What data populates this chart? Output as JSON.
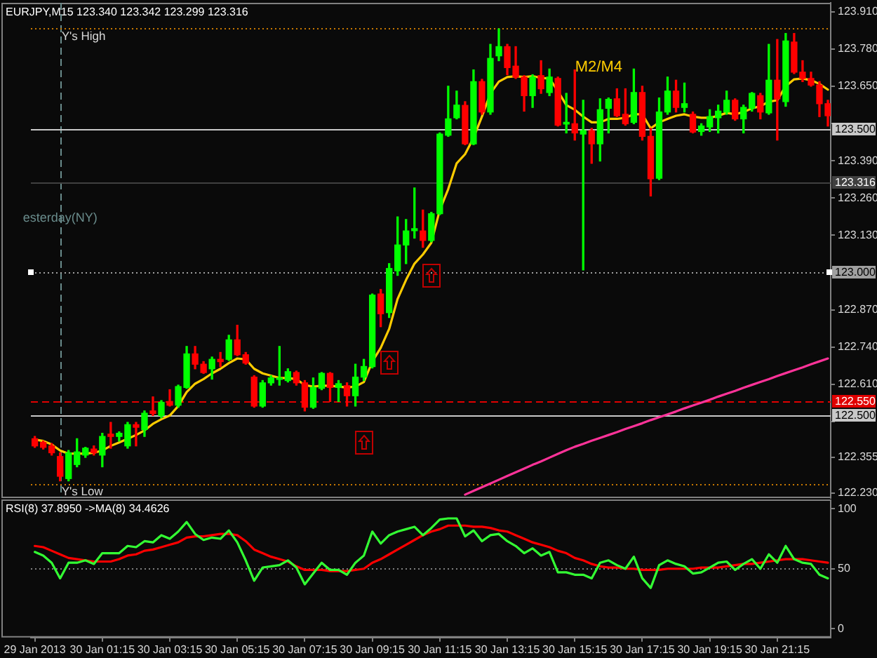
{
  "chart_data": [
    {
      "type": "candlestick",
      "title": "EURJPY,M15 123.340 123.342 123.299 123.316",
      "tick_labels": "y",
      "x": [
        "2013-01-29T23:15",
        "2013-01-29T23:30",
        "2013-01-29T23:45",
        "2013-01-30T00:00",
        "2013-01-30T00:15",
        "2013-01-30T00:30",
        "2013-01-30T00:45",
        "2013-01-30T01:00",
        "2013-01-30T01:15",
        "2013-01-30T01:30",
        "2013-01-30T01:45",
        "2013-01-30T02:00",
        "2013-01-30T02:15",
        "2013-01-30T02:30",
        "2013-01-30T02:45",
        "2013-01-30T03:00",
        "2013-01-30T03:15",
        "2013-01-30T03:30",
        "2013-01-30T03:45",
        "2013-01-30T04:00",
        "2013-01-30T04:15",
        "2013-01-30T04:30",
        "2013-01-30T04:45",
        "2013-01-30T05:00",
        "2013-01-30T05:15",
        "2013-01-30T05:30",
        "2013-01-30T05:45",
        "2013-01-30T06:00",
        "2013-01-30T06:15",
        "2013-01-30T06:30",
        "2013-01-30T06:45",
        "2013-01-30T07:00",
        "2013-01-30T07:15",
        "2013-01-30T07:30",
        "2013-01-30T07:45",
        "2013-01-30T08:00",
        "2013-01-30T08:15",
        "2013-01-30T08:30",
        "2013-01-30T08:45",
        "2013-01-30T09:00",
        "2013-01-30T09:15",
        "2013-01-30T09:30",
        "2013-01-30T09:45",
        "2013-01-30T10:00",
        "2013-01-30T10:15",
        "2013-01-30T10:30",
        "2013-01-30T10:45",
        "2013-01-30T11:00",
        "2013-01-30T11:15",
        "2013-01-30T11:30",
        "2013-01-30T11:45",
        "2013-01-30T12:00",
        "2013-01-30T12:15",
        "2013-01-30T12:30",
        "2013-01-30T12:45",
        "2013-01-30T13:00",
        "2013-01-30T13:15",
        "2013-01-30T13:30",
        "2013-01-30T13:45",
        "2013-01-30T14:00",
        "2013-01-30T14:15",
        "2013-01-30T14:30",
        "2013-01-30T14:45",
        "2013-01-30T15:00",
        "2013-01-30T15:15",
        "2013-01-30T15:30",
        "2013-01-30T15:45",
        "2013-01-30T16:00",
        "2013-01-30T16:15",
        "2013-01-30T16:30",
        "2013-01-30T16:45",
        "2013-01-30T17:00",
        "2013-01-30T17:15",
        "2013-01-30T17:30",
        "2013-01-30T17:45",
        "2013-01-30T18:00",
        "2013-01-30T18:15",
        "2013-01-30T18:30",
        "2013-01-30T18:45",
        "2013-01-30T19:00",
        "2013-01-30T19:15",
        "2013-01-30T19:30",
        "2013-01-30T19:45",
        "2013-01-30T20:00",
        "2013-01-30T20:15",
        "2013-01-30T20:30",
        "2013-01-30T20:45",
        "2013-01-30T21:00",
        "2013-01-30T21:15",
        "2013-01-30T21:30",
        "2013-01-30T21:45",
        "2013-01-30T22:00",
        "2013-01-30T22:15",
        "2013-01-30T22:30",
        "2013-01-30T22:45"
      ],
      "xlim": [
        "2013-01-29T23:08",
        "2013-01-30T22:50"
      ],
      "ylim": [
        122.213,
        123.941
      ],
      "yticks": [
        {
          "value": 123.91,
          "label": "123.910"
        },
        {
          "value": 123.78,
          "label": "123.780"
        },
        {
          "value": 123.65,
          "label": "123.650"
        },
        {
          "value": 123.52,
          "label": null
        },
        {
          "value": 123.39,
          "label": "123.390"
        },
        {
          "value": 123.26,
          "label": "123.260"
        },
        {
          "value": 123.13,
          "label": "123.130"
        },
        {
          "value": 123.0,
          "label": null
        },
        {
          "value": 122.87,
          "label": "122.870"
        },
        {
          "value": 122.74,
          "label": "122.740"
        },
        {
          "value": 122.61,
          "label": "122.610"
        },
        {
          "value": 122.48,
          "label": null
        },
        {
          "value": 122.355,
          "label": "122.355"
        },
        {
          "value": 122.23,
          "label": "122.230"
        }
      ],
      "ohlc": [
        [
          122.42,
          122.428,
          122.39,
          122.395
        ],
        [
          122.407,
          122.412,
          122.384,
          122.39
        ],
        [
          122.395,
          122.403,
          122.363,
          122.371
        ],
        [
          122.358,
          122.371,
          122.273,
          122.289
        ],
        [
          122.281,
          122.379,
          122.273,
          122.371
        ],
        [
          122.33,
          122.42,
          122.322,
          122.374
        ],
        [
          122.363,
          122.39,
          122.355,
          122.387
        ],
        [
          122.384,
          122.395,
          122.363,
          122.371
        ],
        [
          122.363,
          122.439,
          122.322,
          122.428
        ],
        [
          122.436,
          122.477,
          122.387,
          122.428
        ],
        [
          122.428,
          122.444,
          122.412,
          122.439
        ],
        [
          122.395,
          122.477,
          122.387,
          122.469
        ],
        [
          122.469,
          122.477,
          122.395,
          122.46
        ],
        [
          122.452,
          122.517,
          122.428,
          122.509
        ],
        [
          122.517,
          122.566,
          122.501,
          122.508
        ],
        [
          122.501,
          122.553,
          122.493,
          122.547
        ],
        [
          122.55,
          122.591,
          122.534,
          122.537
        ],
        [
          122.537,
          122.607,
          122.53,
          122.602
        ],
        [
          122.599,
          122.742,
          122.596,
          122.716
        ],
        [
          122.716,
          122.742,
          122.664,
          122.68
        ],
        [
          122.68,
          122.689,
          122.648,
          122.651
        ],
        [
          122.664,
          122.705,
          122.628,
          122.697
        ],
        [
          122.697,
          122.721,
          122.672,
          122.689
        ],
        [
          122.697,
          122.781,
          122.693,
          122.765
        ],
        [
          122.765,
          122.816,
          122.71,
          122.713
        ],
        [
          122.713,
          122.721,
          122.68,
          122.684
        ],
        [
          122.635,
          122.64,
          122.53,
          122.534
        ],
        [
          122.534,
          122.623,
          122.53,
          122.615
        ],
        [
          122.615,
          122.64,
          122.607,
          122.632
        ],
        [
          122.627,
          122.742,
          122.607,
          122.632
        ],
        [
          122.623,
          122.664,
          122.618,
          122.654
        ],
        [
          122.651,
          122.656,
          122.607,
          122.615
        ],
        [
          122.615,
          122.623,
          122.517,
          122.53
        ],
        [
          122.53,
          122.632,
          122.526,
          122.599
        ],
        [
          122.596,
          122.651,
          122.591,
          122.648
        ],
        [
          122.648,
          122.651,
          122.55,
          122.599
        ],
        [
          122.599,
          122.623,
          122.55,
          122.612
        ],
        [
          122.605,
          122.615,
          122.534,
          122.57
        ],
        [
          122.57,
          122.68,
          122.534,
          122.635
        ],
        [
          122.635,
          122.697,
          122.623,
          122.672
        ],
        [
          122.672,
          122.925,
          122.667,
          122.921
        ],
        [
          122.925,
          122.941,
          122.811,
          122.856
        ],
        [
          122.86,
          123.031,
          122.843,
          123.014
        ],
        [
          123.006,
          123.194,
          122.99,
          123.096
        ],
        [
          123.096,
          123.185,
          123.031,
          123.145
        ],
        [
          123.146,
          123.295,
          123.12,
          123.153
        ],
        [
          123.145,
          123.218,
          123.088,
          123.112
        ],
        [
          123.112,
          123.21,
          123.107,
          123.205
        ],
        [
          123.205,
          123.487,
          123.202,
          123.483
        ],
        [
          123.479,
          123.65,
          123.475,
          123.536
        ],
        [
          123.54,
          123.633,
          123.536,
          123.584
        ],
        [
          123.583,
          123.596,
          123.446,
          123.449
        ],
        [
          123.449,
          123.707,
          123.446,
          123.666
        ],
        [
          123.666,
          123.674,
          123.552,
          123.56
        ],
        [
          123.56,
          123.796,
          123.552,
          123.747
        ],
        [
          123.756,
          123.85,
          123.739,
          123.788
        ],
        [
          123.788,
          123.796,
          123.69,
          123.715
        ],
        [
          123.72,
          123.788,
          123.677,
          123.682
        ],
        [
          123.682,
          123.687,
          123.563,
          123.617
        ],
        [
          123.617,
          123.69,
          123.576,
          123.682
        ],
        [
          123.687,
          123.739,
          123.625,
          123.641
        ],
        [
          123.628,
          123.71,
          123.617,
          123.682
        ],
        [
          123.677,
          123.682,
          123.511,
          123.514
        ],
        [
          123.518,
          123.625,
          123.487,
          123.524
        ],
        [
          123.519,
          123.707,
          123.462,
          123.487
        ],
        [
          123.483,
          123.601,
          123.009,
          123.495
        ],
        [
          123.495,
          123.503,
          123.381,
          123.449
        ],
        [
          123.449,
          123.606,
          123.389,
          123.568
        ],
        [
          123.573,
          123.609,
          123.487,
          123.604
        ],
        [
          123.606,
          123.641,
          123.544,
          123.547
        ],
        [
          123.552,
          123.641,
          123.514,
          123.519
        ],
        [
          123.524,
          123.71,
          123.519,
          123.628
        ],
        [
          123.628,
          123.65,
          123.462,
          123.475
        ],
        [
          123.475,
          123.503,
          123.267,
          123.327
        ],
        [
          123.329,
          123.609,
          123.324,
          123.56
        ],
        [
          123.56,
          123.682,
          123.552,
          123.633
        ],
        [
          123.633,
          123.671,
          123.56,
          123.576
        ],
        [
          123.576,
          123.661,
          123.56,
          123.589
        ],
        [
          123.552,
          123.56,
          123.487,
          123.49
        ],
        [
          123.492,
          123.519,
          123.479,
          123.511
        ],
        [
          123.508,
          123.568,
          123.492,
          123.544
        ],
        [
          123.54,
          123.584,
          123.487,
          123.563
        ],
        [
          123.56,
          123.633,
          123.552,
          123.601
        ],
        [
          123.601,
          123.606,
          123.531,
          123.536
        ],
        [
          123.536,
          123.584,
          123.487,
          123.576
        ],
        [
          123.573,
          123.628,
          123.563,
          123.625
        ],
        [
          123.617,
          123.625,
          123.536,
          123.56
        ],
        [
          123.557,
          123.796,
          123.552,
          123.671
        ],
        [
          123.671,
          123.813,
          123.462,
          123.606
        ],
        [
          123.596,
          123.834,
          123.58,
          123.808
        ],
        [
          123.804,
          123.834,
          123.694,
          123.699
        ],
        [
          123.699,
          123.739,
          123.666,
          123.677
        ],
        [
          123.677,
          123.699,
          123.65,
          123.654
        ],
        [
          123.654,
          123.666,
          123.544,
          123.589
        ],
        [
          123.589,
          123.601,
          123.511,
          123.547
        ]
      ],
      "colors": [
        "#ff0000",
        "#ff0000",
        "#ff0000",
        "#ff0000",
        "#00ff00",
        "#00ff00",
        "#00ff00",
        "#ff0000",
        "#00ff00",
        "#ff0000",
        "#00ff00",
        "#00ff00",
        "#ff0000",
        "#00ff00",
        "#ff0000",
        "#00ff00",
        "#ff0000",
        "#00ff00",
        "#00ff00",
        "#ff0000",
        "#ff0000",
        "#00ff00",
        "#ff0000",
        "#00ff00",
        "#ff0000",
        "#ff0000",
        "#ff0000",
        "#00ff00",
        "#00ff00",
        "#00ff00",
        "#00ff00",
        "#ff0000",
        "#ff0000",
        "#00ff00",
        "#00ff00",
        "#ff0000",
        "#00ff00",
        "#ff0000",
        "#00ff00",
        "#00ff00",
        "#00ff00",
        "#ff0000",
        "#00ff00",
        "#00ff00",
        "#00ff00",
        "#00ff00",
        "#ff0000",
        "#00ff00",
        "#00ff00",
        "#00ff00",
        "#00ff00",
        "#ff0000",
        "#00ff00",
        "#ff0000",
        "#00ff00",
        "#00ff00",
        "#ff0000",
        "#ff0000",
        "#ff0000",
        "#00ff00",
        "#ff0000",
        "#00ff00",
        "#ff0000",
        "#00ff00",
        "#ff0000",
        "#00ff00",
        "#ff0000",
        "#00ff00",
        "#00ff00",
        "#ff0000",
        "#ff0000",
        "#00ff00",
        "#ff0000",
        "#ff0000",
        "#00ff00",
        "#00ff00",
        "#ff0000",
        "#00ff00",
        "#ff0000",
        "#00ff00",
        "#00ff00",
        "#00ff00",
        "#00ff00",
        "#ff0000",
        "#00ff00",
        "#00ff00",
        "#ff0000",
        "#00ff00",
        "#ff0000",
        "#00ff00",
        "#ff0000",
        "#ff0000",
        "#ff0000",
        "#ff0000",
        "#ff0000"
      ],
      "series": [
        {
          "type": "line",
          "name": "M2/M4",
          "color": "#ffcc00",
          "values": [
            122.417,
            122.412,
            122.4,
            122.379,
            122.368,
            122.368,
            122.368,
            122.371,
            122.379,
            122.395,
            122.407,
            122.42,
            122.433,
            122.449,
            122.472,
            122.488,
            122.501,
            122.534,
            122.583,
            122.612,
            122.628,
            122.648,
            122.664,
            122.684,
            122.7,
            122.697,
            122.664,
            122.648,
            122.64,
            122.632,
            122.632,
            122.628,
            122.607,
            122.602,
            122.605,
            122.605,
            122.602,
            122.599,
            122.602,
            122.618,
            122.689,
            122.737,
            122.803,
            122.908,
            122.974,
            123.031,
            123.063,
            123.104,
            123.218,
            123.291,
            123.381,
            123.413,
            123.47,
            123.544,
            123.625,
            123.666,
            123.682,
            123.685,
            123.682,
            123.685,
            123.679,
            123.677,
            123.633,
            123.584,
            123.568,
            123.544,
            123.524,
            123.524,
            123.536,
            123.536,
            123.54,
            123.552,
            123.552,
            123.503,
            123.524,
            123.536,
            123.547,
            123.552,
            123.544,
            123.54,
            123.54,
            123.547,
            123.557,
            123.552,
            123.56,
            123.573,
            123.58,
            123.596,
            123.601,
            123.65,
            123.674,
            123.677,
            123.671,
            123.658,
            123.638
          ]
        },
        {
          "type": "line",
          "color": "#ff3399",
          "values": [
            null,
            null,
            null,
            null,
            null,
            null,
            null,
            null,
            null,
            null,
            null,
            null,
            null,
            null,
            null,
            null,
            null,
            null,
            null,
            null,
            null,
            null,
            null,
            null,
            null,
            null,
            null,
            null,
            null,
            null,
            null,
            null,
            null,
            null,
            null,
            null,
            null,
            null,
            null,
            null,
            null,
            null,
            null,
            null,
            null,
            null,
            null,
            null,
            null,
            null,
            null,
            122.225,
            122.238,
            122.251,
            122.264,
            122.277,
            122.29,
            122.303,
            122.316,
            122.329,
            122.341,
            122.354,
            122.367,
            122.38,
            122.392,
            122.402,
            122.413,
            122.423,
            122.433,
            122.443,
            122.454,
            122.464,
            122.474,
            122.485,
            122.495,
            122.505,
            122.515,
            122.526,
            122.536,
            122.546,
            122.556,
            122.567,
            122.577,
            122.587,
            122.598,
            122.608,
            122.618,
            122.628,
            122.639,
            122.649,
            122.659,
            122.669,
            122.68,
            122.69,
            122.7
          ]
        }
      ],
      "ref_lines": [
        {
          "axis": "x",
          "value": "2013-01-30T00:00",
          "label": "esterday(NY)",
          "color": "#6a8c8c",
          "line_style": "dashed"
        },
        {
          "axis": "y",
          "value": 123.851,
          "color": "#c87800",
          "line_style": "dotted"
        },
        {
          "axis": "y",
          "value": 122.263,
          "color": "#c87800",
          "line_style": "dotted"
        },
        {
          "axis": "y",
          "value": 123.5,
          "label": "123.500",
          "color": "#c8c8c8"
        },
        {
          "axis": "y",
          "value": 123.316,
          "label": "123.316",
          "color": "#404040"
        },
        {
          "axis": "y",
          "value": 123.0,
          "label": "123.000",
          "color": "#a0a0a0",
          "line_style": "dotted"
        },
        {
          "axis": "y",
          "value": 122.55,
          "label": "122.550",
          "color": "#e00000",
          "line_style": "dashed"
        },
        {
          "axis": "y",
          "value": 122.5,
          "label": "122.500",
          "color": "#c8c8c8"
        }
      ],
      "annotations": [
        {
          "text": "Y's High",
          "x": "2013-01-30T00:00",
          "y": 123.851
        },
        {
          "text": "Y's Low",
          "x": "2013-01-30T00:00",
          "y": 122.263
        }
      ]
    },
    {
      "type": "line",
      "title": "RSI(8) 37.8950 ->MA(8) 34.4626",
      "x": [
        "2013-01-29T23:15",
        "2013-01-29T23:30",
        "2013-01-29T23:45",
        "2013-01-30T00:00",
        "2013-01-30T00:15",
        "2013-01-30T00:30",
        "2013-01-30T00:45",
        "2013-01-30T01:00",
        "2013-01-30T01:15",
        "2013-01-30T01:30",
        "2013-01-30T01:45",
        "2013-01-30T02:00",
        "2013-01-30T02:15",
        "2013-01-30T02:30",
        "2013-01-30T02:45",
        "2013-01-30T03:00",
        "2013-01-30T03:15",
        "2013-01-30T03:30",
        "2013-01-30T03:45",
        "2013-01-30T04:00",
        "2013-01-30T04:15",
        "2013-01-30T04:30",
        "2013-01-30T04:45",
        "2013-01-30T05:00",
        "2013-01-30T05:15",
        "2013-01-30T05:30",
        "2013-01-30T05:45",
        "2013-01-30T06:00",
        "2013-01-30T06:15",
        "2013-01-30T06:30",
        "2013-01-30T06:45",
        "2013-01-30T07:00",
        "2013-01-30T07:15",
        "2013-01-30T07:30",
        "2013-01-30T07:45",
        "2013-01-30T08:00",
        "2013-01-30T08:15",
        "2013-01-30T08:30",
        "2013-01-30T08:45",
        "2013-01-30T09:00",
        "2013-01-30T09:15",
        "2013-01-30T09:30",
        "2013-01-30T09:45",
        "2013-01-30T10:00",
        "2013-01-30T10:15",
        "2013-01-30T10:30",
        "2013-01-30T10:45",
        "2013-01-30T11:00",
        "2013-01-30T11:15",
        "2013-01-30T11:30",
        "2013-01-30T11:45",
        "2013-01-30T12:00",
        "2013-01-30T12:15",
        "2013-01-30T12:30",
        "2013-01-30T12:45",
        "2013-01-30T13:00",
        "2013-01-30T13:15",
        "2013-01-30T13:30",
        "2013-01-30T13:45",
        "2013-01-30T14:00",
        "2013-01-30T14:15",
        "2013-01-30T14:30",
        "2013-01-30T14:45",
        "2013-01-30T15:00",
        "2013-01-30T15:15",
        "2013-01-30T15:30",
        "2013-01-30T15:45",
        "2013-01-30T16:00",
        "2013-01-30T16:15",
        "2013-01-30T16:30",
        "2013-01-30T16:45",
        "2013-01-30T17:00",
        "2013-01-30T17:15",
        "2013-01-30T17:30",
        "2013-01-30T17:45",
        "2013-01-30T18:00",
        "2013-01-30T18:15",
        "2013-01-30T18:30",
        "2013-01-30T18:45",
        "2013-01-30T19:00",
        "2013-01-30T19:15",
        "2013-01-30T19:30",
        "2013-01-30T19:45",
        "2013-01-30T20:00",
        "2013-01-30T20:15",
        "2013-01-30T20:30",
        "2013-01-30T20:45",
        "2013-01-30T21:00",
        "2013-01-30T21:15",
        "2013-01-30T21:30",
        "2013-01-30T21:45",
        "2013-01-30T22:00",
        "2013-01-30T22:15",
        "2013-01-30T22:30",
        "2013-01-30T22:45"
      ],
      "xlim": [
        "2013-01-29T23:08",
        "2013-01-30T22:50"
      ],
      "xticks": [
        {
          "value": "2013-01-29T23:15",
          "label": "29 Jan 2013"
        },
        {
          "value": "2013-01-30T01:15",
          "label": "30 Jan 01:15"
        },
        {
          "value": "2013-01-30T03:15",
          "label": "30 Jan 03:15"
        },
        {
          "value": "2013-01-30T05:15",
          "label": "30 Jan 05:15"
        },
        {
          "value": "2013-01-30T07:15",
          "label": "30 Jan 07:15"
        },
        {
          "value": "2013-01-30T09:15",
          "label": "30 Jan 09:15"
        },
        {
          "value": "2013-01-30T11:15",
          "label": "30 Jan 11:15"
        },
        {
          "value": "2013-01-30T13:15",
          "label": "30 Jan 13:15"
        },
        {
          "value": "2013-01-30T15:15",
          "label": "30 Jan 15:15"
        },
        {
          "value": "2013-01-30T17:15",
          "label": "30 Jan 17:15"
        },
        {
          "value": "2013-01-30T19:15",
          "label": "30 Jan 19:15"
        },
        {
          "value": "2013-01-30T21:15",
          "label": "30 Jan 21:15"
        }
      ],
      "ylim": [
        -7.4,
        107.8
      ],
      "yticks": [
        0,
        50,
        100
      ],
      "series": [
        {
          "color": "#33ff33",
          "values": [
            64,
            61,
            55,
            42,
            55,
            55,
            57,
            54,
            63,
            63,
            63,
            69,
            68,
            73,
            72,
            78,
            75,
            81,
            89,
            79,
            74,
            76,
            75,
            82,
            72,
            57,
            40,
            51,
            52,
            53,
            57,
            51,
            37,
            46,
            55,
            49,
            49,
            45,
            55,
            61,
            81,
            71,
            78,
            81,
            83,
            85,
            78,
            84,
            91,
            92,
            92,
            77,
            82,
            73,
            78,
            79,
            73,
            69,
            63,
            67,
            61,
            64,
            47,
            47,
            45,
            45,
            42,
            55,
            57,
            53,
            50,
            60,
            42,
            34,
            53,
            57,
            54,
            52,
            46,
            47,
            51,
            55,
            56,
            49,
            54,
            58,
            50,
            62,
            55,
            69,
            58,
            55,
            54,
            45,
            42
          ]
        },
        {
          "color": "#ff0000",
          "values": [
            69,
            68,
            65,
            62,
            59,
            58,
            57,
            56,
            56,
            56,
            58,
            61,
            62,
            65,
            66,
            68,
            70,
            72,
            76,
            77,
            77,
            78,
            79,
            79,
            78,
            73,
            66,
            63,
            60,
            58,
            56,
            52,
            49,
            49,
            49,
            48,
            48,
            48,
            49,
            50,
            55,
            58,
            62,
            66,
            70,
            74,
            78,
            81,
            83,
            86,
            86,
            86,
            85,
            85,
            84,
            82,
            81,
            78,
            75,
            72,
            70,
            68,
            65,
            63,
            59,
            57,
            54,
            52,
            51,
            51,
            50,
            50,
            49,
            49,
            49,
            50,
            50,
            50,
            50,
            51,
            51,
            51,
            52,
            53,
            54,
            54,
            55,
            56,
            57,
            58,
            58,
            58,
            57,
            56,
            55
          ]
        }
      ],
      "ref_lines": [
        {
          "axis": "y",
          "value": 50,
          "color": "#808080",
          "line_style": "dotted"
        }
      ]
    }
  ]
}
